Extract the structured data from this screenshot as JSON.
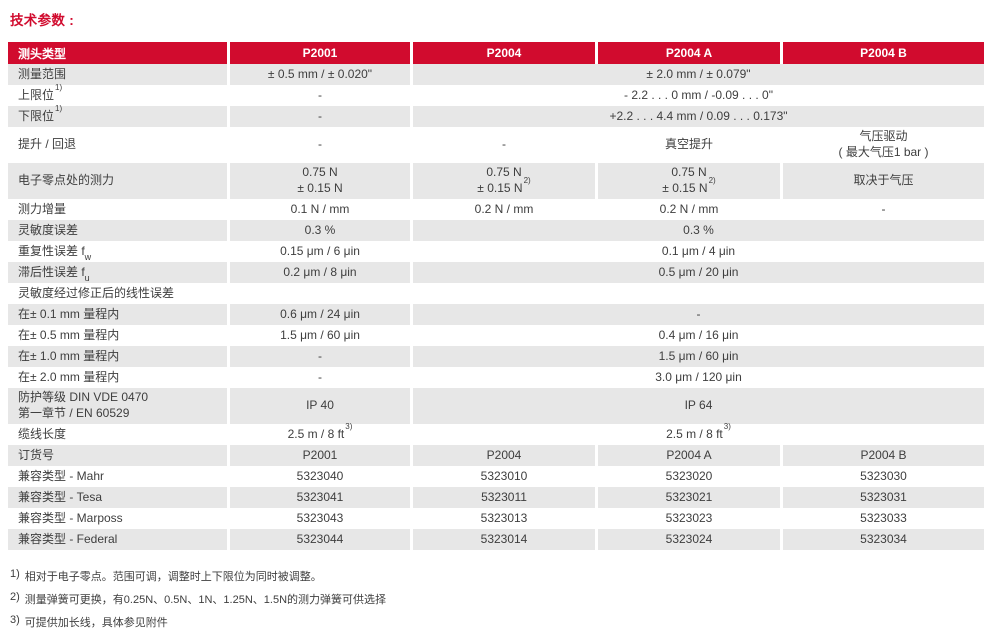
{
  "title": "技术参数 :",
  "colors": {
    "brand_red": "#d10b2e",
    "row_shade": "#e7e7e7",
    "text": "#3e3e3e"
  },
  "table": {
    "columns": [
      "测头类型",
      "P2001",
      "P2004",
      "P2004 A",
      "P2004 B"
    ],
    "rows": [
      {
        "label": "测量范围",
        "shaded": true,
        "cells": [
          {
            "t": "± 0.5 mm / ± 0.020\""
          },
          {
            "t": "± 2.0 mm / ± 0.079\"",
            "span": 3
          }
        ]
      },
      {
        "label": "上限位",
        "sup": "1)",
        "shaded": false,
        "cells": [
          {
            "t": "-"
          },
          {
            "t": "- 2.2 . . . 0 mm / -0.09 . . . 0\"",
            "span": 3
          }
        ]
      },
      {
        "label": "下限位",
        "sup": "1)",
        "shaded": true,
        "cells": [
          {
            "t": "-"
          },
          {
            "t": "+2.2 . . . 4.4 mm / 0.09 . . . 0.173\"",
            "span": 3
          }
        ]
      },
      {
        "label": "提升 / 回退",
        "shaded": false,
        "cells": [
          {
            "t": "-"
          },
          {
            "t": "-"
          },
          {
            "t": "真空提升"
          },
          {
            "t": "气压驱动\n( 最大气压1 bar )"
          }
        ]
      },
      {
        "label": "电子零点处的测力",
        "shaded": true,
        "cells": [
          {
            "t": "0.75 N\n± 0.15 N"
          },
          {
            "t": "0.75 N\n± 0.15 N",
            "sup": "2)"
          },
          {
            "t": "0.75 N\n± 0.15 N",
            "sup": "2)"
          },
          {
            "t": "取决于气压"
          }
        ]
      },
      {
        "label": "测力增量",
        "shaded": false,
        "cells": [
          {
            "t": "0.1 N / mm"
          },
          {
            "t": "0.2 N / mm"
          },
          {
            "t": "0.2 N / mm"
          },
          {
            "t": "-"
          }
        ]
      },
      {
        "label": "灵敏度误差",
        "shaded": true,
        "cells": [
          {
            "t": "0.3 %"
          },
          {
            "t": "0.3 %",
            "span": 3
          }
        ]
      },
      {
        "label": "重复性误差 f",
        "sub": "w",
        "shaded": false,
        "cells": [
          {
            "t": "0.15 μm / 6 μin"
          },
          {
            "t": "0.1 μm / 4 μin",
            "span": 3
          }
        ]
      },
      {
        "label": "滞后性误差 f",
        "sub": "u",
        "shaded": true,
        "cells": [
          {
            "t": "0.2 μm / 8 μin"
          },
          {
            "t": "0.5 μm / 20 μin",
            "span": 3
          }
        ]
      },
      {
        "label": "灵敏度经过修正后的线性误差",
        "shaded": false,
        "cells": []
      },
      {
        "label": "在± 0.1 mm 量程内",
        "shaded": true,
        "cells": [
          {
            "t": "0.6 μm / 24 μin"
          },
          {
            "t": "-",
            "span": 3
          }
        ]
      },
      {
        "label": "在± 0.5 mm 量程内",
        "shaded": false,
        "cells": [
          {
            "t": "1.5 μm / 60 μin"
          },
          {
            "t": "0.4 μm / 16 μin",
            "span": 3
          }
        ]
      },
      {
        "label": "在± 1.0 mm 量程内",
        "shaded": true,
        "cells": [
          {
            "t": "-"
          },
          {
            "t": "1.5 μm / 60 μin",
            "span": 3
          }
        ]
      },
      {
        "label": "在± 2.0 mm 量程内",
        "shaded": false,
        "cells": [
          {
            "t": "-"
          },
          {
            "t": "3.0 μm / 120 μin",
            "span": 3
          }
        ]
      },
      {
        "label": "防护等级 DIN VDE 0470\n第一章节 / EN 60529",
        "shaded": true,
        "cells": [
          {
            "t": "IP 40"
          },
          {
            "t": "IP 64",
            "span": 3
          }
        ]
      },
      {
        "label": "缆线长度",
        "shaded": false,
        "cells": [
          {
            "t": "2.5 m / 8 ft",
            "sup": "3)"
          },
          {
            "t": "2.5 m / 8 ft",
            "sup": "3)",
            "span": 3
          }
        ]
      },
      {
        "label": "订货号",
        "shaded": true,
        "cells": [
          {
            "t": "P2001"
          },
          {
            "t": "P2004"
          },
          {
            "t": "P2004 A"
          },
          {
            "t": "P2004 B"
          }
        ]
      },
      {
        "label": "兼容类型 - Mahr",
        "shaded": false,
        "cells": [
          {
            "t": "5323040"
          },
          {
            "t": "5323010"
          },
          {
            "t": "5323020"
          },
          {
            "t": "5323030"
          }
        ]
      },
      {
        "label": "兼容类型 - Tesa",
        "shaded": true,
        "cells": [
          {
            "t": "5323041"
          },
          {
            "t": "5323011"
          },
          {
            "t": "5323021"
          },
          {
            "t": "5323031"
          }
        ]
      },
      {
        "label": "兼容类型 - Marposs",
        "shaded": false,
        "cells": [
          {
            "t": "5323043"
          },
          {
            "t": "5323013"
          },
          {
            "t": "5323023"
          },
          {
            "t": "5323033"
          }
        ]
      },
      {
        "label": "兼容类型 - Federal",
        "shaded": true,
        "cells": [
          {
            "t": "5323044"
          },
          {
            "t": "5323014"
          },
          {
            "t": "5323024"
          },
          {
            "t": "5323034"
          }
        ]
      }
    ]
  },
  "footnotes": [
    {
      "marker": "1)",
      "text": "相对于电子零点。范围可调，调整时上下限位为同时被调整。"
    },
    {
      "marker": "2)",
      "text": "测量弹簧可更换，有0.25N、0.5N、1N、1.25N、1.5N的测力弹簧可供选择"
    },
    {
      "marker": "3)",
      "text": "可提供加长线，具体参见附件"
    }
  ]
}
